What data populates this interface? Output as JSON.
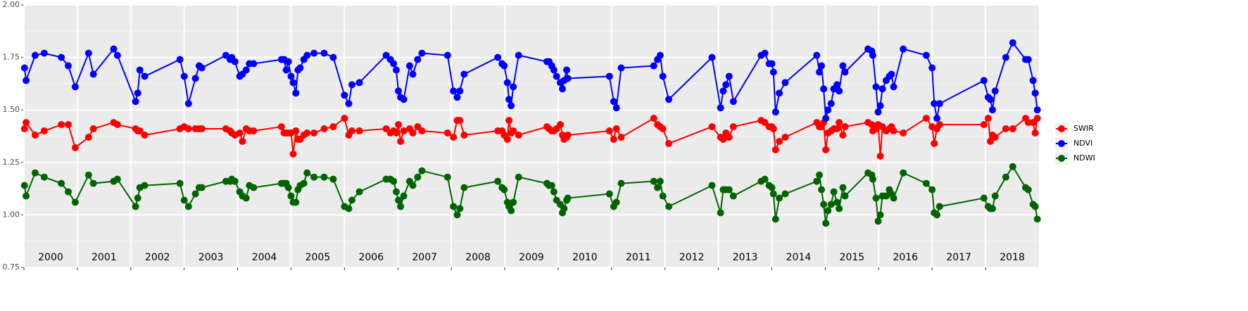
{
  "chart_data": {
    "type": "line",
    "x": [
      2000.01,
      2000.04,
      2000.21,
      2000.38,
      2000.7,
      2000.83,
      2000.96,
      2001.21,
      2001.3,
      2001.68,
      2001.75,
      2002.09,
      2002.13,
      2002.17,
      2002.26,
      2002.92,
      2003.0,
      2003.08,
      2003.21,
      2003.28,
      2003.33,
      2003.78,
      2003.86,
      2003.89,
      2003.95,
      2004.04,
      2004.09,
      2004.16,
      2004.22,
      2004.3,
      2004.82,
      2004.87,
      2004.91,
      2004.95,
      2005.0,
      2005.04,
      2005.09,
      2005.13,
      2005.17,
      2005.24,
      2005.3,
      2005.43,
      2005.62,
      2005.79,
      2006.0,
      2006.08,
      2006.14,
      2006.28,
      2006.78,
      2006.86,
      2006.92,
      2006.97,
      2007.01,
      2007.05,
      2007.11,
      2007.22,
      2007.28,
      2007.37,
      2007.45,
      2007.93,
      2008.04,
      2008.11,
      2008.16,
      2008.24,
      2008.87,
      2008.95,
      2008.99,
      2009.05,
      2009.08,
      2009.12,
      2009.16,
      2009.26,
      2009.79,
      2009.83,
      2009.88,
      2009.92,
      2009.97,
      2010.04,
      2010.08,
      2010.11,
      2010.16,
      2010.18,
      2010.96,
      2011.04,
      2011.09,
      2011.18,
      2011.79,
      2011.86,
      2011.91,
      2011.96,
      2012.07,
      2012.88,
      2013.04,
      2013.09,
      2013.14,
      2013.2,
      2013.28,
      2013.8,
      2013.87,
      2013.95,
      2014.0,
      2014.03,
      2014.07,
      2014.14,
      2014.25,
      2014.84,
      2014.89,
      2014.93,
      2014.97,
      2015.01,
      2015.05,
      2015.11,
      2015.16,
      2015.22,
      2015.26,
      2015.33,
      2015.37,
      2015.8,
      2015.87,
      2015.89,
      2015.95,
      2015.99,
      2016.03,
      2016.07,
      2016.14,
      2016.2,
      2016.24,
      2016.28,
      2016.46,
      2016.89,
      2017.0,
      2017.04,
      2017.09,
      2017.14,
      2017.97,
      2018.05,
      2018.09,
      2018.13,
      2018.18,
      2018.38,
      2018.51,
      2018.75,
      2018.8,
      2018.89,
      2018.93,
      2018.97
    ],
    "series": [
      {
        "name": "SWIR",
        "color": "#ff0000",
        "values": [
          1.41,
          1.44,
          1.38,
          1.4,
          1.43,
          1.43,
          1.32,
          1.37,
          1.41,
          1.44,
          1.43,
          1.41,
          1.4,
          1.4,
          1.38,
          1.41,
          1.42,
          1.41,
          1.41,
          1.41,
          1.41,
          1.41,
          1.4,
          1.39,
          1.38,
          1.39,
          1.35,
          1.41,
          1.4,
          1.4,
          1.42,
          1.39,
          1.39,
          1.39,
          1.39,
          1.29,
          1.4,
          1.36,
          1.36,
          1.38,
          1.39,
          1.39,
          1.41,
          1.42,
          1.46,
          1.38,
          1.4,
          1.4,
          1.41,
          1.39,
          1.4,
          1.39,
          1.43,
          1.35,
          1.4,
          1.41,
          1.39,
          1.42,
          1.4,
          1.39,
          1.37,
          1.45,
          1.45,
          1.38,
          1.4,
          1.4,
          1.38,
          1.36,
          1.45,
          1.39,
          1.4,
          1.38,
          1.42,
          1.41,
          1.4,
          1.4,
          1.41,
          1.43,
          1.38,
          1.36,
          1.37,
          1.38,
          1.4,
          1.36,
          1.41,
          1.37,
          1.46,
          1.43,
          1.42,
          1.41,
          1.34,
          1.42,
          1.37,
          1.36,
          1.39,
          1.37,
          1.42,
          1.45,
          1.44,
          1.42,
          1.42,
          1.41,
          1.31,
          1.35,
          1.37,
          1.44,
          1.42,
          1.42,
          1.44,
          1.31,
          1.39,
          1.4,
          1.41,
          1.41,
          1.44,
          1.38,
          1.42,
          1.44,
          1.43,
          1.4,
          1.41,
          1.43,
          1.28,
          1.42,
          1.4,
          1.41,
          1.42,
          1.4,
          1.39,
          1.46,
          1.42,
          1.34,
          1.41,
          1.43,
          1.43,
          1.46,
          1.35,
          1.38,
          1.37,
          1.41,
          1.41,
          1.46,
          1.44,
          1.44,
          1.39,
          1.46
        ]
      },
      {
        "name": "NDVI",
        "color": "#0000ff",
        "values": [
          1.7,
          1.64,
          1.76,
          1.77,
          1.75,
          1.71,
          1.61,
          1.77,
          1.67,
          1.79,
          1.76,
          1.54,
          1.58,
          1.69,
          1.66,
          1.74,
          1.66,
          1.53,
          1.65,
          1.71,
          1.7,
          1.76,
          1.74,
          1.75,
          1.73,
          1.66,
          1.67,
          1.69,
          1.72,
          1.72,
          1.74,
          1.74,
          1.69,
          1.73,
          1.66,
          1.63,
          1.58,
          1.69,
          1.7,
          1.74,
          1.76,
          1.77,
          1.77,
          1.75,
          1.57,
          1.53,
          1.62,
          1.63,
          1.76,
          1.74,
          1.72,
          1.69,
          1.59,
          1.56,
          1.55,
          1.71,
          1.67,
          1.74,
          1.77,
          1.76,
          1.59,
          1.56,
          1.59,
          1.67,
          1.75,
          1.72,
          1.71,
          1.63,
          1.55,
          1.52,
          1.61,
          1.76,
          1.73,
          1.73,
          1.71,
          1.69,
          1.66,
          1.63,
          1.6,
          1.64,
          1.69,
          1.65,
          1.66,
          1.54,
          1.51,
          1.7,
          1.71,
          1.74,
          1.76,
          1.66,
          1.55,
          1.75,
          1.51,
          1.59,
          1.62,
          1.66,
          1.54,
          1.76,
          1.77,
          1.72,
          1.72,
          1.68,
          1.49,
          1.58,
          1.63,
          1.76,
          1.68,
          1.71,
          1.6,
          1.46,
          1.5,
          1.53,
          1.6,
          1.62,
          1.59,
          1.71,
          1.68,
          1.79,
          1.78,
          1.76,
          1.61,
          1.49,
          1.52,
          1.6,
          1.64,
          1.66,
          1.67,
          1.61,
          1.79,
          1.76,
          1.7,
          1.53,
          1.46,
          1.53,
          1.64,
          1.56,
          1.55,
          1.5,
          1.59,
          1.75,
          1.82,
          1.74,
          1.74,
          1.64,
          1.58,
          1.5
        ]
      },
      {
        "name": "NDWI",
        "color": "#006400",
        "values": [
          1.14,
          1.09,
          1.2,
          1.18,
          1.15,
          1.11,
          1.06,
          1.19,
          1.15,
          1.16,
          1.17,
          1.04,
          1.08,
          1.13,
          1.14,
          1.15,
          1.07,
          1.04,
          1.1,
          1.13,
          1.13,
          1.16,
          1.16,
          1.17,
          1.16,
          1.11,
          1.09,
          1.08,
          1.14,
          1.13,
          1.15,
          1.15,
          1.15,
          1.13,
          1.09,
          1.06,
          1.06,
          1.12,
          1.14,
          1.15,
          1.2,
          1.18,
          1.18,
          1.17,
          1.04,
          1.03,
          1.07,
          1.11,
          1.17,
          1.17,
          1.16,
          1.11,
          1.07,
          1.04,
          1.09,
          1.16,
          1.14,
          1.18,
          1.21,
          1.18,
          1.04,
          1.0,
          1.03,
          1.13,
          1.16,
          1.13,
          1.12,
          1.06,
          1.04,
          1.02,
          1.06,
          1.18,
          1.15,
          1.14,
          1.14,
          1.11,
          1.07,
          1.05,
          1.01,
          1.03,
          1.07,
          1.08,
          1.1,
          1.04,
          1.06,
          1.15,
          1.16,
          1.13,
          1.16,
          1.09,
          1.04,
          1.14,
          1.01,
          1.12,
          1.12,
          1.12,
          1.09,
          1.16,
          1.17,
          1.14,
          1.13,
          1.1,
          0.98,
          1.08,
          1.1,
          1.16,
          1.19,
          1.12,
          1.05,
          0.96,
          1.02,
          1.05,
          1.11,
          1.06,
          1.03,
          1.13,
          1.09,
          1.2,
          1.19,
          1.17,
          1.08,
          0.97,
          1.0,
          1.09,
          1.09,
          1.12,
          1.1,
          1.08,
          1.2,
          1.15,
          1.12,
          1.01,
          1.0,
          1.04,
          1.08,
          1.04,
          1.03,
          1.03,
          1.09,
          1.18,
          1.23,
          1.13,
          1.12,
          1.05,
          1.04,
          0.98
        ]
      }
    ],
    "xlim": [
      2000,
      2019
    ],
    "xticks": [
      {
        "value": 2000,
        "label": "2000"
      },
      {
        "value": 2001,
        "label": "2001"
      },
      {
        "value": 2002,
        "label": "2002"
      },
      {
        "value": 2003,
        "label": "2003"
      },
      {
        "value": 2004,
        "label": "2004"
      },
      {
        "value": 2005,
        "label": "2005"
      },
      {
        "value": 2006,
        "label": "2006"
      },
      {
        "value": 2007,
        "label": "2007"
      },
      {
        "value": 2008,
        "label": "2008"
      },
      {
        "value": 2009,
        "label": "2009"
      },
      {
        "value": 2010,
        "label": "2010"
      },
      {
        "value": 2011,
        "label": "2011"
      },
      {
        "value": 2012,
        "label": "2012"
      },
      {
        "value": 2013,
        "label": "2013"
      },
      {
        "value": 2014,
        "label": "2014"
      },
      {
        "value": 2015,
        "label": "2015"
      },
      {
        "value": 2016,
        "label": "2016"
      },
      {
        "value": 2017,
        "label": "2017"
      },
      {
        "value": 2018,
        "label": "2018"
      }
    ],
    "ylim": [
      0.75,
      2.0
    ],
    "yticks": [
      0.75,
      {
        "value": 1.0,
        "label": "1.00"
      },
      1.25,
      {
        "value": 1.5,
        "label": "1.50"
      },
      1.75,
      {
        "value": 2.0,
        "label": "2.00"
      }
    ],
    "grid": true,
    "legend": "right"
  }
}
